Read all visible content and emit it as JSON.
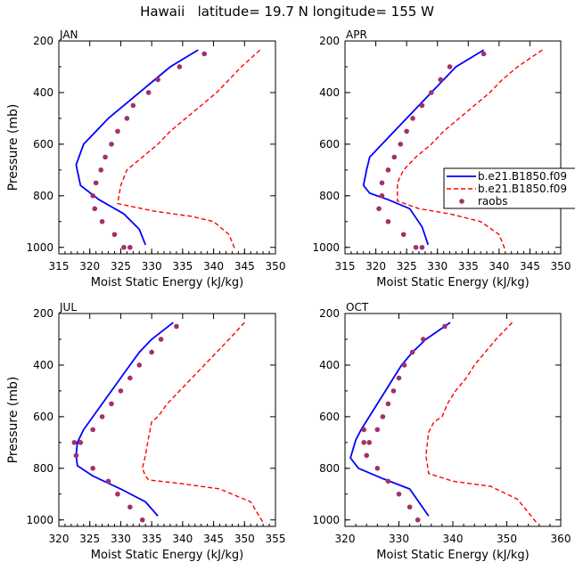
{
  "figure": {
    "title": "Hawaii   latitude= 19.7 N longitude= 155 W"
  },
  "legend": {
    "entries": [
      {
        "label": "b.e21.B1850.f09",
        "style": "solid",
        "color": "#0000ff"
      },
      {
        "label": "b.e21.B1850.f09",
        "style": "dashed",
        "color": "#ff0000"
      },
      {
        "label": "raobs",
        "style": "dot",
        "color": "#a0306e"
      }
    ]
  },
  "chart_data": [
    {
      "type": "line",
      "panel_label": "JAN",
      "xlabel": "Moist Static Energy (kJ/kg)",
      "ylabel": "Pressure (mb)",
      "xlim": [
        315,
        350
      ],
      "ylim": [
        1025,
        200
      ],
      "xticks": [
        315,
        320,
        325,
        330,
        335,
        340,
        345,
        350
      ],
      "yticks": [
        200,
        400,
        600,
        800,
        1000
      ],
      "series": [
        {
          "name": "b.e21.B1850.f09 (solid)",
          "color": "#0000ff",
          "style": "solid",
          "x": [
            337.5,
            333,
            330.5,
            328,
            325.5,
            323,
            321,
            319,
            317.8,
            318.5,
            321.5,
            325.5,
            328,
            329
          ],
          "p": [
            235,
            300,
            350,
            400,
            450,
            500,
            550,
            600,
            680,
            760,
            815,
            870,
            930,
            990
          ]
        },
        {
          "name": "b.e21.B1850.f09 (dashed)",
          "color": "#ff0000",
          "style": "dashed",
          "x": [
            347.5,
            344.5,
            342.5,
            340.5,
            338,
            335.5,
            333,
            331,
            328.5,
            326,
            325,
            324.5,
            330.5,
            336.5,
            340,
            342.5,
            343.5
          ],
          "p": [
            235,
            300,
            350,
            400,
            450,
            500,
            550,
            600,
            650,
            700,
            760,
            830,
            860,
            880,
            900,
            950,
            1010
          ]
        },
        {
          "name": "raobs",
          "color": "#a0306e",
          "style": "dot",
          "x": [
            338.5,
            334.5,
            331,
            329.5,
            327,
            326,
            324.5,
            323.5,
            322.5,
            321.8,
            321,
            320.5,
            320.8,
            322,
            324,
            325.5,
            326.5
          ],
          "p": [
            250,
            300,
            350,
            400,
            450,
            500,
            550,
            600,
            650,
            700,
            750,
            800,
            850,
            900,
            950,
            1000,
            1000
          ]
        }
      ]
    },
    {
      "type": "line",
      "panel_label": "APR",
      "xlabel": "Moist Static Energy (kJ/kg)",
      "ylabel": "",
      "xlim": [
        315,
        350
      ],
      "ylim": [
        1025,
        200
      ],
      "xticks": [
        315,
        320,
        325,
        330,
        335,
        340,
        345,
        350
      ],
      "yticks": [
        200,
        400,
        600,
        800,
        1000
      ],
      "series": [
        {
          "name": "b.e21.B1850.f09 (solid)",
          "color": "#0000ff",
          "style": "solid",
          "x": [
            337.5,
            333,
            331,
            329,
            327,
            325,
            323,
            321,
            319,
            318.5,
            318,
            319,
            322,
            325.5,
            327.5,
            328.5
          ],
          "p": [
            235,
            300,
            350,
            400,
            450,
            500,
            550,
            600,
            650,
            700,
            760,
            790,
            815,
            850,
            920,
            990
          ]
        },
        {
          "name": "b.e21.B1850.f09 (dashed)",
          "color": "#ff0000",
          "style": "dashed",
          "x": [
            347,
            343,
            340.5,
            338.5,
            336,
            333.5,
            331,
            329,
            326.5,
            324.5,
            323.5,
            323.5,
            327,
            332,
            337,
            340,
            341
          ],
          "p": [
            235,
            300,
            350,
            400,
            450,
            500,
            550,
            600,
            650,
            700,
            750,
            820,
            850,
            870,
            900,
            950,
            1010
          ]
        },
        {
          "name": "raobs",
          "color": "#a0306e",
          "style": "dot",
          "x": [
            337.5,
            332,
            330.5,
            329,
            327.5,
            326,
            325,
            324,
            323,
            322,
            321,
            321,
            320.5,
            322,
            324.5,
            326.5,
            327.5
          ],
          "p": [
            250,
            300,
            350,
            400,
            450,
            500,
            550,
            600,
            650,
            700,
            750,
            800,
            850,
            900,
            950,
            1000,
            1000
          ]
        }
      ]
    },
    {
      "type": "line",
      "panel_label": "JUL",
      "xlabel": "Moist Static Energy (kJ/kg)",
      "ylabel": "Pressure (mb)",
      "xlim": [
        320,
        355
      ],
      "ylim": [
        1025,
        200
      ],
      "xticks": [
        320,
        325,
        330,
        335,
        340,
        345,
        350,
        355
      ],
      "yticks": [
        200,
        400,
        600,
        800,
        1000
      ],
      "series": [
        {
          "name": "b.e21.B1850.f09 (solid)",
          "color": "#0000ff",
          "style": "solid",
          "x": [
            338.5,
            335,
            333,
            331.5,
            330,
            328.5,
            327,
            325.5,
            324,
            323,
            322.8,
            323,
            325.5,
            330,
            334,
            336
          ],
          "p": [
            235,
            300,
            350,
            400,
            450,
            500,
            550,
            600,
            650,
            700,
            750,
            790,
            830,
            880,
            930,
            985
          ]
        },
        {
          "name": "b.e21.B1850.f09 (dashed)",
          "color": "#ff0000",
          "style": "dashed",
          "x": [
            350,
            347.5,
            345.5,
            343.5,
            341.5,
            339.5,
            337.5,
            336,
            335,
            334.5,
            334,
            333.5,
            334,
            334.5,
            340,
            346,
            351,
            353
          ],
          "p": [
            235,
            300,
            350,
            400,
            450,
            500,
            550,
            600,
            620,
            680,
            750,
            800,
            830,
            845,
            860,
            880,
            930,
            1010
          ]
        },
        {
          "name": "raobs",
          "color": "#a0306e",
          "style": "dot",
          "x": [
            339,
            336.5,
            335,
            333,
            331.5,
            330,
            328.5,
            327,
            325.5,
            323.5,
            322.5,
            322.8,
            325.5,
            328,
            329.5,
            331.5,
            333.5
          ],
          "p": [
            250,
            300,
            350,
            400,
            450,
            500,
            550,
            600,
            650,
            700,
            700,
            750,
            800,
            850,
            900,
            950,
            1000
          ]
        }
      ]
    },
    {
      "type": "line",
      "panel_label": "OCT",
      "xlabel": "Moist Static Energy (kJ/kg)",
      "ylabel": "",
      "xlim": [
        320,
        360
      ],
      "ylim": [
        1025,
        200
      ],
      "xticks": [
        320,
        330,
        340,
        350,
        360
      ],
      "yticks": [
        200,
        400,
        600,
        800,
        1000
      ],
      "series": [
        {
          "name": "b.e21.B1850.f09 (solid)",
          "color": "#0000ff",
          "style": "solid",
          "x": [
            339.5,
            335,
            332.5,
            330.5,
            329,
            327.5,
            326,
            324.5,
            323,
            322,
            321,
            322.5,
            327,
            332,
            335.5
          ],
          "p": [
            235,
            300,
            350,
            400,
            450,
            500,
            550,
            600,
            650,
            690,
            760,
            800,
            840,
            880,
            985
          ]
        },
        {
          "name": "b.e21.B1850.f09 (dashed)",
          "color": "#ff0000",
          "style": "dashed",
          "x": [
            351,
            348,
            346,
            344,
            342.5,
            340.5,
            339,
            338,
            336.5,
            335.5,
            335,
            335.5,
            340,
            347,
            352,
            355.5
          ],
          "p": [
            235,
            300,
            350,
            400,
            450,
            500,
            550,
            600,
            620,
            660,
            750,
            820,
            850,
            870,
            920,
            1010
          ]
        },
        {
          "name": "raobs",
          "color": "#a0306e",
          "style": "dot",
          "x": [
            338.5,
            334.5,
            332.5,
            331,
            330,
            329,
            328,
            327,
            326,
            324.5,
            323.5,
            323.5,
            324,
            326,
            328,
            330,
            332,
            333.5
          ],
          "p": [
            250,
            300,
            350,
            400,
            450,
            500,
            550,
            600,
            650,
            700,
            650,
            700,
            750,
            800,
            850,
            900,
            950,
            1000
          ]
        }
      ]
    }
  ]
}
